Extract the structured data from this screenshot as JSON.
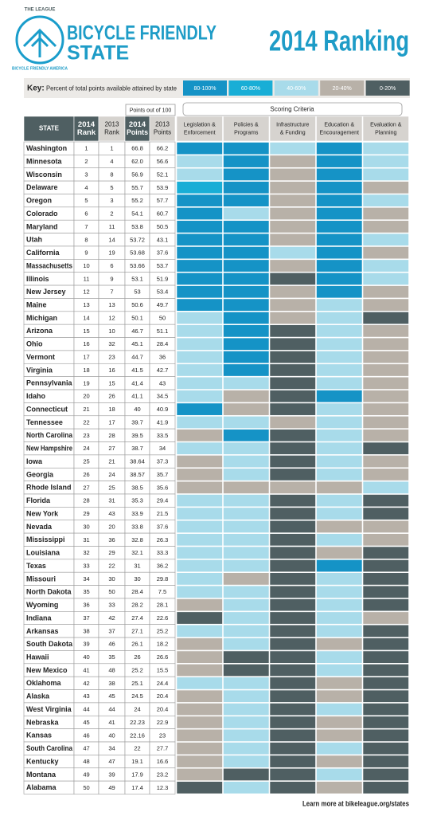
{
  "header": {
    "logo_top": "THE LEAGUE",
    "logo_ring": "BICYCLE FRIENDLY AMERICA",
    "title_line1": "BICYCLE FRIENDLY",
    "title_line2": "STATE",
    "ranking": "2014 Ranking"
  },
  "key": {
    "label": "Key:",
    "text": "Percent of total points available attained by state",
    "levels": [
      {
        "label": "80-100%",
        "color": "#1593c6"
      },
      {
        "label": "60-80%",
        "color": "#19aed6"
      },
      {
        "label": "40-60%",
        "color": "#a8dbea"
      },
      {
        "label": "20-40%",
        "color": "#b8b1a8"
      },
      {
        "label": "0-20%",
        "color": "#4f5f62"
      }
    ]
  },
  "points_note": "Points out of 100",
  "criteria_title": "Scoring Criteria",
  "columns": [
    [
      "STATE"
    ],
    [
      "2014",
      "Rank"
    ],
    [
      "2013",
      "Rank"
    ],
    [
      "2014",
      "Points"
    ],
    [
      "2013",
      "Points"
    ],
    [
      "Legislation &",
      "Enforcement"
    ],
    [
      "Policies &",
      "Programs"
    ],
    [
      "Infrastructure",
      "& Funding"
    ],
    [
      "Education &",
      "Encouragement"
    ],
    [
      "Evaluation &",
      "Planning"
    ]
  ],
  "rows": [
    [
      "Washington",
      "1",
      "1",
      "66.8",
      "66.2"
    ],
    [
      "Minnesota",
      "2",
      "4",
      "62.0",
      "56.6"
    ],
    [
      "Wisconsin",
      "3",
      "8",
      "56.9",
      "52.1"
    ],
    [
      "Delaware",
      "4",
      "5",
      "55.7",
      "53.9"
    ],
    [
      "Oregon",
      "5",
      "3",
      "55.2",
      "57.7"
    ],
    [
      "Colorado",
      "6",
      "2",
      "54.1",
      "60.7"
    ],
    [
      "Maryland",
      "7",
      "11",
      "53.8",
      "50.5"
    ],
    [
      "Utah",
      "8",
      "14",
      "53.72",
      "43.1"
    ],
    [
      "California",
      "9",
      "19",
      "53.68",
      "37.6"
    ],
    [
      "Massachusetts",
      "10",
      "6",
      "53.66",
      "53.7"
    ],
    [
      "Illinois",
      "11",
      "9",
      "53.1",
      "51.9"
    ],
    [
      "New Jersey",
      "12",
      "7",
      "53",
      "53.4"
    ],
    [
      "Maine",
      "13",
      "13",
      "50.6",
      "49.7"
    ],
    [
      "Michigan",
      "14",
      "12",
      "50.1",
      "50"
    ],
    [
      "Arizona",
      "15",
      "10",
      "46.7",
      "51.1"
    ],
    [
      "Ohio",
      "16",
      "32",
      "45.1",
      "28.4"
    ],
    [
      "Vermont",
      "17",
      "23",
      "44.7",
      "36"
    ],
    [
      "Virginia",
      "18",
      "16",
      "41.5",
      "42.7"
    ],
    [
      "Pennsylvania",
      "19",
      "15",
      "41.4",
      "43"
    ],
    [
      "Idaho",
      "20",
      "26",
      "41.1",
      "34.5"
    ],
    [
      "Connecticut",
      "21",
      "18",
      "40",
      "40.9"
    ],
    [
      "Tennessee",
      "22",
      "17",
      "39.7",
      "41.9"
    ],
    [
      "North Carolina",
      "23",
      "28",
      "39.5",
      "33.5"
    ],
    [
      "New Hampshire",
      "24",
      "27",
      "38.7",
      "34"
    ],
    [
      "Iowa",
      "25",
      "21",
      "38.64",
      "37.3"
    ],
    [
      "Georgia",
      "26",
      "24",
      "38.57",
      "35.7"
    ],
    [
      "Rhode Island",
      "27",
      "25",
      "38.5",
      "35.6"
    ],
    [
      "Florida",
      "28",
      "31",
      "35.3",
      "29.4"
    ],
    [
      "New York",
      "29",
      "43",
      "33.9",
      "21.5"
    ],
    [
      "Nevada",
      "30",
      "20",
      "33.8",
      "37.6"
    ],
    [
      "Mississippi",
      "31",
      "36",
      "32.8",
      "26.3"
    ],
    [
      "Louisiana",
      "32",
      "29",
      "32.1",
      "33.3"
    ],
    [
      "Texas",
      "33",
      "22",
      "31",
      "36.2"
    ],
    [
      "Missouri",
      "34",
      "30",
      "30",
      "29.8"
    ],
    [
      "North Dakota",
      "35",
      "50",
      "28.4",
      "7.5"
    ],
    [
      "Wyoming",
      "36",
      "33",
      "28.2",
      "28.1"
    ],
    [
      "Indiana",
      "37",
      "42",
      "27.4",
      "22.6"
    ],
    [
      "Arkansas",
      "38",
      "37",
      "27.1",
      "25.2"
    ],
    [
      "South Dakota",
      "39",
      "46",
      "26.1",
      "18.2"
    ],
    [
      "Hawaii",
      "40",
      "35",
      "26",
      "26.6"
    ],
    [
      "New Mexico",
      "41",
      "48",
      "25.2",
      "15.5"
    ],
    [
      "Oklahoma",
      "42",
      "38",
      "25.1",
      "24.4"
    ],
    [
      "Alaska",
      "43",
      "45",
      "24.5",
      "20.4"
    ],
    [
      "West Virginia",
      "44",
      "44",
      "24",
      "20.4"
    ],
    [
      "Nebraska",
      "45",
      "41",
      "22.23",
      "22.9"
    ],
    [
      "Kansas",
      "46",
      "40",
      "22.16",
      "23"
    ],
    [
      "South Carolina",
      "47",
      "34",
      "22",
      "27.7"
    ],
    [
      "Kentucky",
      "48",
      "47",
      "19.1",
      "16.6"
    ],
    [
      "Montana",
      "49",
      "39",
      "17.9",
      "23.2"
    ],
    [
      "Alabama",
      "50",
      "49",
      "17.4",
      "12.3"
    ]
  ],
  "levels": [
    [
      0,
      0,
      2,
      0,
      2
    ],
    [
      2,
      0,
      3,
      0,
      2
    ],
    [
      2,
      0,
      3,
      0,
      2
    ],
    [
      1,
      0,
      3,
      0,
      3
    ],
    [
      0,
      0,
      3,
      0,
      2
    ],
    [
      0,
      2,
      3,
      0,
      3
    ],
    [
      0,
      0,
      3,
      0,
      3
    ],
    [
      0,
      0,
      3,
      0,
      2
    ],
    [
      0,
      0,
      2,
      0,
      3
    ],
    [
      0,
      0,
      3,
      0,
      2
    ],
    [
      0,
      0,
      4,
      0,
      2
    ],
    [
      0,
      0,
      3,
      0,
      3
    ],
    [
      0,
      0,
      3,
      2,
      3
    ],
    [
      2,
      0,
      3,
      2,
      4
    ],
    [
      2,
      0,
      4,
      2,
      3
    ],
    [
      2,
      0,
      4,
      2,
      3
    ],
    [
      2,
      0,
      4,
      2,
      3
    ],
    [
      2,
      0,
      4,
      2,
      3
    ],
    [
      2,
      2,
      4,
      2,
      3
    ],
    [
      2,
      3,
      4,
      0,
      3
    ],
    [
      0,
      3,
      4,
      2,
      3
    ],
    [
      2,
      2,
      3,
      2,
      3
    ],
    [
      3,
      0,
      4,
      2,
      3
    ],
    [
      2,
      2,
      4,
      2,
      4
    ],
    [
      3,
      2,
      4,
      2,
      3
    ],
    [
      3,
      2,
      4,
      2,
      3
    ],
    [
      3,
      3,
      3,
      3,
      2
    ],
    [
      2,
      2,
      4,
      2,
      4
    ],
    [
      2,
      2,
      4,
      2,
      4
    ],
    [
      2,
      2,
      4,
      3,
      3
    ],
    [
      2,
      2,
      4,
      2,
      3
    ],
    [
      2,
      2,
      4,
      3,
      4
    ],
    [
      2,
      2,
      4,
      0,
      4
    ],
    [
      2,
      3,
      4,
      2,
      4
    ],
    [
      2,
      2,
      4,
      2,
      4
    ],
    [
      3,
      2,
      4,
      2,
      4
    ],
    [
      4,
      2,
      4,
      2,
      3
    ],
    [
      2,
      2,
      4,
      2,
      4
    ],
    [
      3,
      2,
      4,
      3,
      4
    ],
    [
      3,
      4,
      4,
      2,
      4
    ],
    [
      3,
      4,
      4,
      2,
      4
    ],
    [
      2,
      2,
      4,
      3,
      4
    ],
    [
      3,
      2,
      4,
      3,
      4
    ],
    [
      3,
      2,
      4,
      2,
      4
    ],
    [
      3,
      2,
      4,
      3,
      4
    ],
    [
      3,
      2,
      4,
      3,
      4
    ],
    [
      3,
      2,
      4,
      2,
      4
    ],
    [
      3,
      2,
      4,
      3,
      4
    ],
    [
      3,
      4,
      4,
      2,
      4
    ],
    [
      4,
      2,
      4,
      3,
      4
    ]
  ],
  "footer": "Learn more at bikeleague.org/states"
}
